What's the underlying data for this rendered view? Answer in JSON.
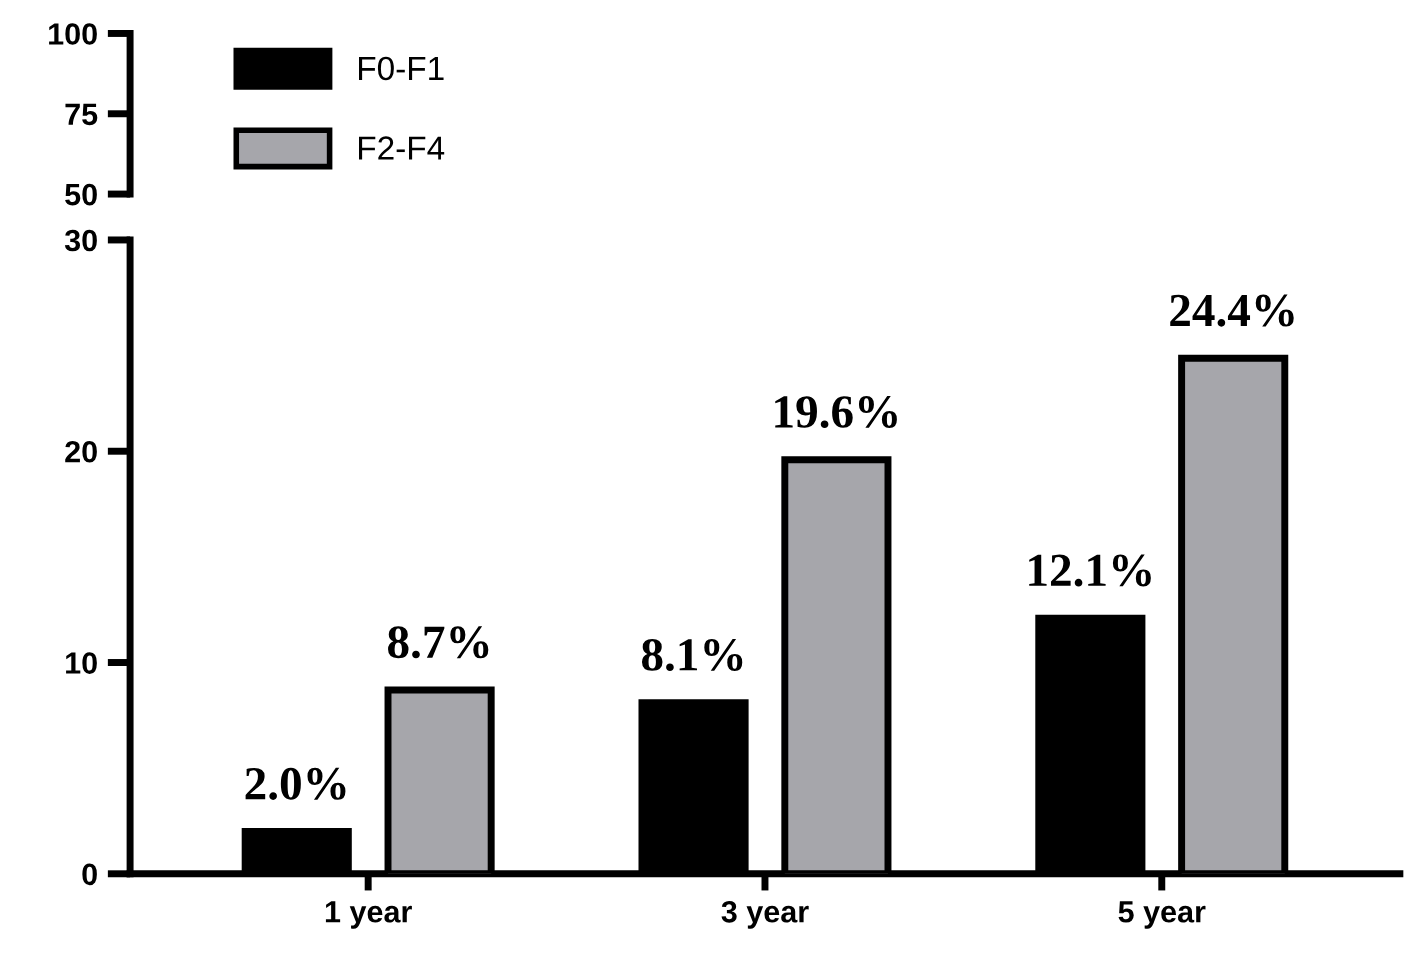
{
  "chart_data": [
    {
      "type": "bar",
      "series": [
        {
          "name": "F0-F1",
          "color": "#000000",
          "values": [
            null,
            null,
            null
          ]
        },
        {
          "name": "F2-F4",
          "color": "#a6a6ab",
          "values": [
            null,
            null,
            null
          ]
        }
      ],
      "ylim": [
        50,
        100
      ],
      "yticks": [
        50,
        75,
        100
      ],
      "tick_labels": "y",
      "legend": "top left",
      "grid": false
    },
    {
      "type": "bar",
      "categories": [
        "1 year",
        "3 year",
        "5 year"
      ],
      "series": [
        {
          "color": "#000000",
          "values": [
            2.0,
            8.1,
            12.1
          ],
          "value_labels": [
            "2.0%",
            "8.1%",
            "12.1%"
          ]
        },
        {
          "color": "#a6a6ab",
          "values": [
            8.7,
            19.6,
            24.4
          ],
          "value_labels": [
            "8.7%",
            "19.6%",
            "24.4%"
          ]
        }
      ],
      "ylim": [
        0,
        30
      ],
      "yticks": [
        0,
        10,
        20,
        30
      ],
      "grid": false
    }
  ]
}
